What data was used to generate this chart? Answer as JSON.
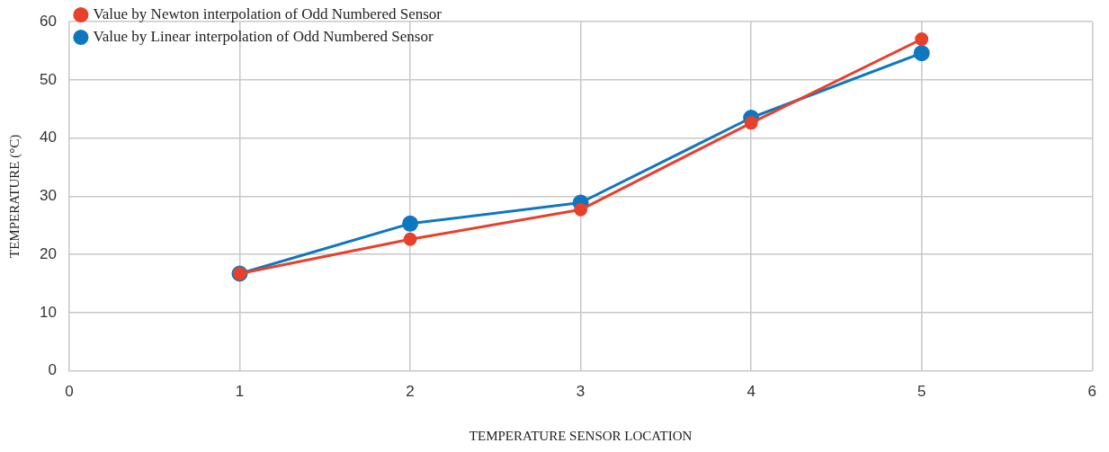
{
  "chart_data": {
    "type": "line",
    "xlabel": "TEMPERATURE SENSOR LOCATION",
    "ylabel": "TEMPERATURE (°C)",
    "x": [
      1,
      2,
      3,
      4,
      5
    ],
    "series": [
      {
        "name": "Value by Linear interpolation of Odd Numbered Sensor",
        "color": "#0f77bf",
        "values": [
          16.7,
          25.3,
          28.9,
          43.5,
          54.6
        ]
      },
      {
        "name": "Value by Newton interpolation of Odd Numbered Sensor",
        "color": "#e8402b",
        "values": [
          16.7,
          22.6,
          27.7,
          42.6,
          57.0
        ]
      }
    ],
    "xlim": [
      0,
      6
    ],
    "xticks": [
      0,
      1,
      2,
      3,
      4,
      5,
      6
    ],
    "ylim": [
      0,
      60
    ],
    "yticks": [
      0,
      10,
      20,
      30,
      40,
      50,
      60
    ],
    "grid": true,
    "legend": "top left",
    "marker": "circle",
    "line_style": "solid"
  }
}
